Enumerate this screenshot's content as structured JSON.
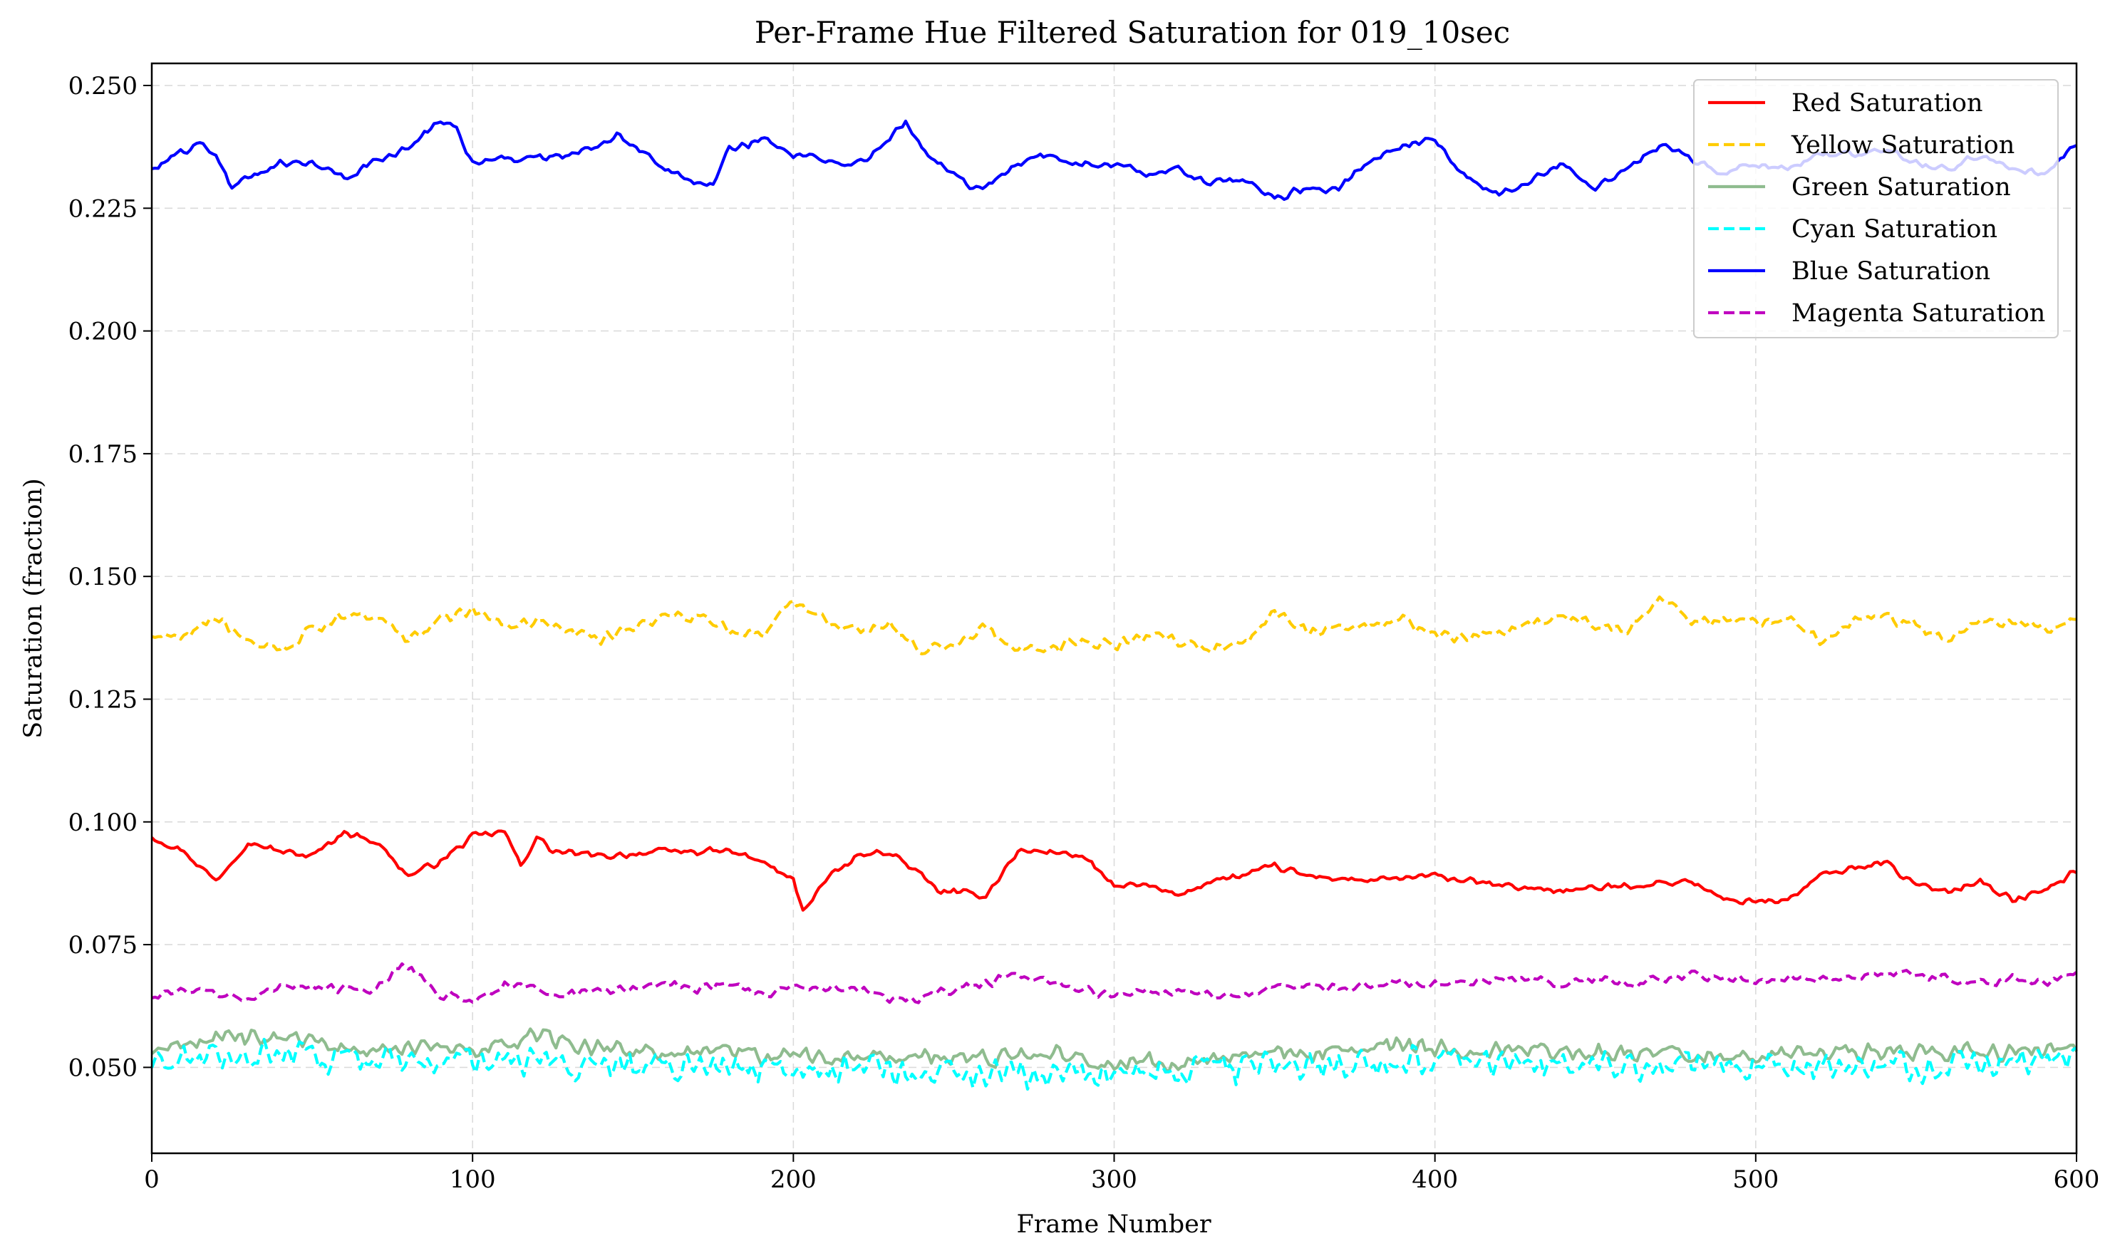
{
  "chart_data": {
    "type": "line",
    "title": "Per-Frame Hue Filtered Saturation for 019_10sec",
    "xlabel": "Frame Number",
    "ylabel": "Saturation (fraction)",
    "xlim": [
      0,
      600
    ],
    "ylim": [
      0.0325,
      0.2545
    ],
    "xticks": [
      0,
      100,
      200,
      300,
      400,
      500,
      600
    ],
    "xtick_labels": [
      "0",
      "100",
      "200",
      "300",
      "400",
      "500",
      "600"
    ],
    "yticks": [
      0.05,
      0.075,
      0.1,
      0.125,
      0.15,
      0.175,
      0.2,
      0.225,
      0.25
    ],
    "ytick_labels": [
      "0.050",
      "0.075",
      "0.100",
      "0.125",
      "0.150",
      "0.175",
      "0.200",
      "0.225",
      "0.250"
    ],
    "grid": true,
    "legend_position": "top-right",
    "series": [
      {
        "name": "Red Saturation",
        "color": "#ff0000",
        "style": "solid",
        "width_class": "normal",
        "noise": 0.0008,
        "x": [
          0,
          10,
          20,
          30,
          40,
          50,
          60,
          70,
          80,
          90,
          100,
          110,
          115,
          120,
          125,
          140,
          160,
          180,
          190,
          200,
          203,
          210,
          220,
          230,
          240,
          245,
          260,
          270,
          280,
          290,
          300,
          310,
          320,
          330,
          340,
          350,
          360,
          380,
          400,
          420,
          440,
          460,
          480,
          490,
          500,
          510,
          520,
          540,
          550,
          560,
          570,
          580,
          590,
          600
        ],
        "y": [
          0.097,
          0.094,
          0.088,
          0.096,
          0.094,
          0.093,
          0.098,
          0.096,
          0.089,
          0.092,
          0.097,
          0.098,
          0.091,
          0.097,
          0.094,
          0.093,
          0.094,
          0.094,
          0.092,
          0.088,
          0.082,
          0.088,
          0.093,
          0.094,
          0.089,
          0.086,
          0.085,
          0.094,
          0.094,
          0.093,
          0.087,
          0.087,
          0.085,
          0.088,
          0.089,
          0.091,
          0.089,
          0.088,
          0.089,
          0.087,
          0.086,
          0.087,
          0.088,
          0.084,
          0.084,
          0.084,
          0.089,
          0.092,
          0.087,
          0.086,
          0.088,
          0.084,
          0.086,
          0.09
        ]
      },
      {
        "name": "Yellow Saturation",
        "color": "#ffcc00",
        "style": "dashed",
        "width_class": "normal",
        "noise": 0.0014,
        "x": [
          0,
          10,
          20,
          30,
          40,
          50,
          60,
          70,
          80,
          90,
          100,
          110,
          120,
          130,
          140,
          150,
          160,
          170,
          180,
          190,
          200,
          210,
          220,
          230,
          240,
          250,
          260,
          270,
          280,
          290,
          300,
          310,
          320,
          330,
          340,
          350,
          360,
          370,
          380,
          390,
          400,
          410,
          420,
          430,
          440,
          450,
          460,
          470,
          480,
          490,
          500,
          510,
          520,
          530,
          540,
          550,
          560,
          570,
          580,
          590,
          600
        ],
        "y": [
          0.138,
          0.138,
          0.142,
          0.137,
          0.135,
          0.139,
          0.142,
          0.142,
          0.137,
          0.141,
          0.143,
          0.14,
          0.141,
          0.139,
          0.137,
          0.14,
          0.142,
          0.142,
          0.139,
          0.138,
          0.145,
          0.141,
          0.139,
          0.14,
          0.135,
          0.136,
          0.14,
          0.135,
          0.135,
          0.137,
          0.136,
          0.138,
          0.137,
          0.135,
          0.136,
          0.143,
          0.139,
          0.14,
          0.14,
          0.141,
          0.138,
          0.138,
          0.138,
          0.14,
          0.142,
          0.14,
          0.139,
          0.146,
          0.141,
          0.141,
          0.141,
          0.142,
          0.137,
          0.141,
          0.142,
          0.14,
          0.137,
          0.141,
          0.141,
          0.139,
          0.141
        ]
      },
      {
        "name": "Green Saturation",
        "color": "#8fbc8f",
        "style": "solid",
        "width_class": "normal",
        "noise": 0.0022,
        "x": [
          0,
          20,
          40,
          60,
          80,
          100,
          120,
          140,
          160,
          180,
          200,
          220,
          240,
          260,
          280,
          300,
          320,
          340,
          360,
          380,
          400,
          420,
          440,
          460,
          480,
          500,
          520,
          540,
          560,
          580,
          600
        ],
        "y": [
          0.053,
          0.056,
          0.056,
          0.054,
          0.054,
          0.053,
          0.056,
          0.054,
          0.053,
          0.053,
          0.052,
          0.052,
          0.052,
          0.052,
          0.053,
          0.051,
          0.051,
          0.052,
          0.053,
          0.054,
          0.054,
          0.054,
          0.053,
          0.053,
          0.053,
          0.052,
          0.053,
          0.053,
          0.053,
          0.053,
          0.054
        ]
      },
      {
        "name": "Cyan Saturation",
        "color": "#00ffff",
        "style": "dashed",
        "width_class": "normal",
        "noise": 0.0036,
        "x": [
          0,
          20,
          40,
          60,
          80,
          100,
          120,
          140,
          160,
          180,
          200,
          220,
          240,
          260,
          280,
          300,
          320,
          340,
          360,
          380,
          400,
          420,
          440,
          460,
          480,
          500,
          520,
          540,
          560,
          580,
          600
        ],
        "y": [
          0.05,
          0.052,
          0.053,
          0.051,
          0.051,
          0.051,
          0.051,
          0.05,
          0.05,
          0.05,
          0.049,
          0.05,
          0.049,
          0.049,
          0.049,
          0.049,
          0.049,
          0.05,
          0.05,
          0.051,
          0.051,
          0.051,
          0.05,
          0.05,
          0.05,
          0.05,
          0.051,
          0.05,
          0.05,
          0.051,
          0.053
        ]
      },
      {
        "name": "Blue Saturation",
        "color": "#0000ff",
        "style": "solid",
        "width_class": "normal",
        "noise": 0.0009,
        "x": [
          0,
          5,
          15,
          20,
          25,
          30,
          40,
          50,
          60,
          70,
          80,
          90,
          95,
          100,
          110,
          120,
          130,
          140,
          145,
          160,
          170,
          175,
          180,
          190,
          200,
          210,
          220,
          230,
          235,
          240,
          250,
          255,
          260,
          270,
          280,
          290,
          300,
          310,
          320,
          330,
          340,
          350,
          360,
          370,
          380,
          390,
          400,
          410,
          420,
          430,
          440,
          450,
          460,
          470,
          480,
          490,
          500,
          510,
          520,
          530,
          540,
          550,
          560,
          570,
          580,
          590,
          600
        ],
        "y": [
          0.233,
          0.235,
          0.238,
          0.236,
          0.229,
          0.231,
          0.234,
          0.234,
          0.231,
          0.235,
          0.237,
          0.243,
          0.241,
          0.234,
          0.235,
          0.235,
          0.236,
          0.238,
          0.24,
          0.233,
          0.23,
          0.23,
          0.237,
          0.239,
          0.236,
          0.235,
          0.234,
          0.239,
          0.243,
          0.237,
          0.232,
          0.229,
          0.229,
          0.234,
          0.236,
          0.234,
          0.234,
          0.232,
          0.233,
          0.23,
          0.231,
          0.227,
          0.229,
          0.229,
          0.235,
          0.238,
          0.239,
          0.231,
          0.228,
          0.231,
          0.234,
          0.229,
          0.233,
          0.238,
          0.235,
          0.232,
          0.234,
          0.233,
          0.236,
          0.236,
          0.237,
          0.234,
          0.233,
          0.236,
          0.233,
          0.232,
          0.238
        ]
      },
      {
        "name": "Magenta Saturation",
        "color": "#bf00bf",
        "style": "dashed",
        "width_class": "normal",
        "noise": 0.0011,
        "x": [
          0,
          10,
          20,
          30,
          40,
          50,
          60,
          70,
          78,
          85,
          90,
          100,
          110,
          120,
          130,
          140,
          150,
          160,
          170,
          180,
          190,
          200,
          210,
          220,
          230,
          240,
          250,
          260,
          270,
          280,
          290,
          300,
          310,
          320,
          330,
          340,
          350,
          360,
          370,
          380,
          390,
          400,
          410,
          420,
          430,
          440,
          450,
          460,
          470,
          480,
          490,
          500,
          510,
          520,
          530,
          540,
          550,
          560,
          570,
          580,
          590,
          600
        ],
        "y": [
          0.064,
          0.066,
          0.065,
          0.064,
          0.067,
          0.066,
          0.066,
          0.066,
          0.071,
          0.068,
          0.065,
          0.063,
          0.067,
          0.066,
          0.065,
          0.066,
          0.066,
          0.067,
          0.066,
          0.067,
          0.065,
          0.066,
          0.066,
          0.066,
          0.064,
          0.064,
          0.066,
          0.067,
          0.069,
          0.067,
          0.066,
          0.064,
          0.066,
          0.065,
          0.065,
          0.065,
          0.066,
          0.067,
          0.066,
          0.067,
          0.067,
          0.067,
          0.067,
          0.068,
          0.068,
          0.067,
          0.068,
          0.067,
          0.068,
          0.069,
          0.068,
          0.068,
          0.068,
          0.068,
          0.068,
          0.069,
          0.069,
          0.068,
          0.067,
          0.068,
          0.067,
          0.069
        ]
      }
    ]
  }
}
